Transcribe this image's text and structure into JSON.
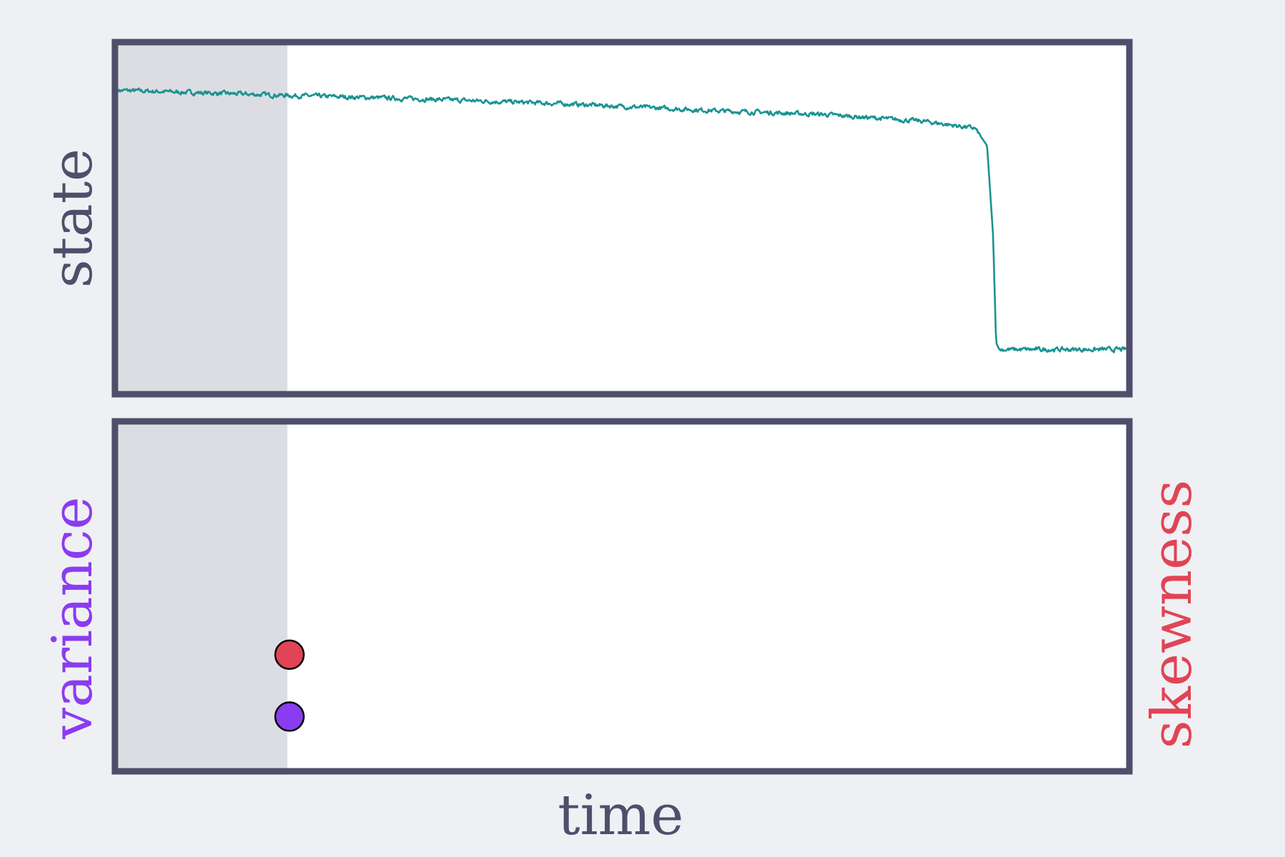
{
  "colors": {
    "background": "#eff0f4",
    "frame": "#4f4e6b",
    "window_shade": "#dcdde2",
    "state_line": "#1a9393",
    "variance": "#8a3cf0",
    "skewness": "#e14455",
    "label_text": "#4f4e6b"
  },
  "chart_data": [
    {
      "type": "line",
      "ylabel": "state",
      "xlim": [
        0,
        1
      ],
      "ylim": [
        0,
        1
      ],
      "grid": false,
      "shaded_window": [
        0,
        0.17
      ],
      "series": [
        {
          "color": "#1a9393",
          "noise": 0.01,
          "x": [
            0.0,
            0.17,
            0.3,
            0.45,
            0.6,
            0.7,
            0.8,
            0.85,
            0.862,
            0.868,
            0.871,
            0.874,
            0.88,
            1.0
          ],
          "y": [
            0.87,
            0.855,
            0.845,
            0.83,
            0.81,
            0.8,
            0.78,
            0.76,
            0.71,
            0.45,
            0.14,
            0.12,
            0.12,
            0.12
          ]
        }
      ]
    },
    {
      "type": "scatter",
      "xlabel": "time",
      "ylabel_left": "variance",
      "ylabel_right": "skewness",
      "xlim": [
        0,
        1
      ],
      "ylim": [
        0,
        1
      ],
      "grid": false,
      "shaded_window": [
        0,
        0.17
      ],
      "series": [
        {
          "name": "variance",
          "color": "#8a3cf0",
          "x": [
            0.17
          ],
          "y": [
            0.15
          ]
        },
        {
          "name": "skewness",
          "color": "#e14455",
          "x": [
            0.17
          ],
          "y": [
            0.33
          ]
        }
      ]
    }
  ]
}
